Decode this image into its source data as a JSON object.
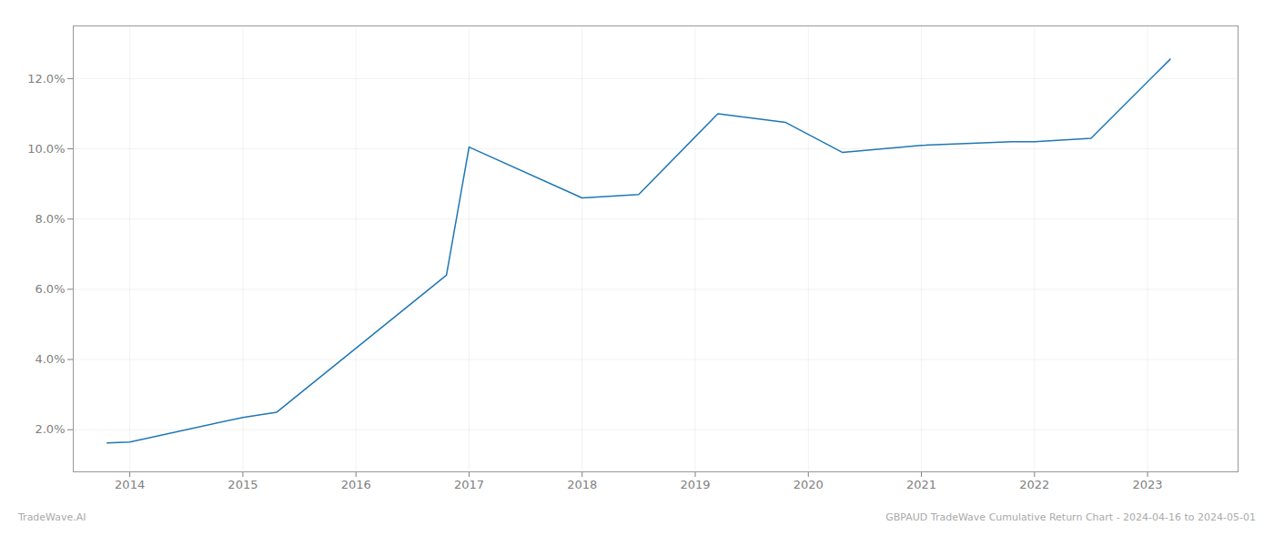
{
  "chart_data": {
    "type": "line",
    "x": [
      2013.8,
      2014.0,
      2015.0,
      2015.3,
      2016.8,
      2017.0,
      2018.0,
      2018.5,
      2019.2,
      2019.8,
      2020.3,
      2021.0,
      2021.8,
      2022.0,
      2022.5,
      2023.2
    ],
    "values": [
      1.62,
      1.65,
      2.35,
      2.5,
      6.4,
      10.05,
      8.6,
      8.7,
      11.0,
      10.75,
      9.9,
      10.1,
      10.2,
      10.2,
      10.3,
      12.55
    ],
    "color": "#1f77b4",
    "xlim": [
      2013.5,
      2023.8
    ],
    "ylim": [
      0.8,
      13.5
    ],
    "xticks": [
      2014,
      2015,
      2016,
      2017,
      2018,
      2019,
      2020,
      2021,
      2022,
      2023
    ],
    "yticks": [
      {
        "value": 2.0,
        "label": "2.0%"
      },
      {
        "value": 4.0,
        "label": "4.0%"
      },
      {
        "value": 6.0,
        "label": "6.0%"
      },
      {
        "value": 8.0,
        "label": "8.0%"
      },
      {
        "value": 10.0,
        "label": "10.0%"
      },
      {
        "value": 12.0,
        "label": "12.0%"
      }
    ],
    "grid": true,
    "annotations": [
      "TradeWave.AI",
      "GBPAUD TradeWave Cumulative Return Chart - 2024-04-16 to 2024-05-01"
    ]
  }
}
